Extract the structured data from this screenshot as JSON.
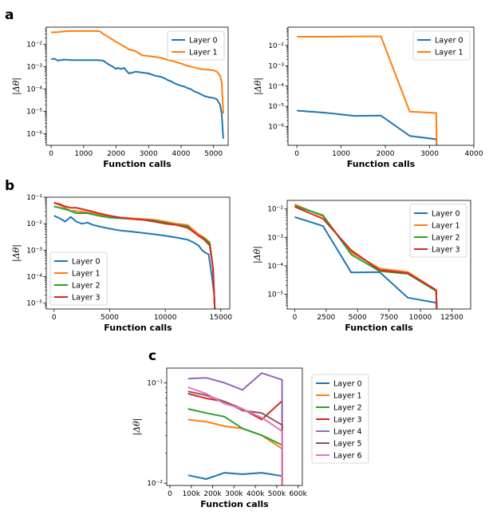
{
  "panel_labels": [
    "a",
    "b",
    "c"
  ],
  "chart_data": [
    {
      "id": "a-left",
      "type": "line",
      "yscale": "log",
      "xlabel": "Function calls",
      "ylabel": "|Δθ|",
      "xlim": [
        -150,
        5450
      ],
      "ylim": [
        3e-07,
        0.06
      ],
      "xticks": [
        0,
        1000,
        2000,
        3000,
        4000,
        5000
      ],
      "xtick_labels": [
        "0",
        "1000",
        "2000",
        "3000",
        "4000",
        "5000"
      ],
      "yticks": [
        1e-06,
        1e-05,
        0.0001,
        0.001,
        0.01
      ],
      "ytick_labels": [
        "10⁻⁶",
        "10⁻⁵",
        "10⁻⁴",
        "10⁻³",
        "10⁻²"
      ],
      "legend": "top-right",
      "series": [
        {
          "name": "Layer 0",
          "color": "#1f77b4",
          "x": [
            0,
            100,
            200,
            300,
            400,
            600,
            800,
            1000,
            1200,
            1400,
            1600,
            1700,
            1800,
            1900,
            2000,
            2050,
            2150,
            2250,
            2300,
            2400,
            2600,
            2800,
            3000,
            3200,
            3400,
            3500,
            3600,
            3700,
            3800,
            3900,
            4000,
            4100,
            4200,
            4300,
            4400,
            4500,
            4600,
            4700,
            4800,
            4900,
            5000,
            5100,
            5200,
            5250,
            5300
          ],
          "y": [
            0.0022,
            0.0023,
            0.0019,
            0.002,
            0.0021,
            0.002,
            0.002,
            0.002,
            0.002,
            0.002,
            0.0019,
            0.0015,
            0.0012,
            0.001,
            0.0008,
            0.0009,
            0.0008,
            0.0009,
            0.0007,
            0.0005,
            0.0006,
            0.00055,
            0.0005,
            0.0004,
            0.00035,
            0.0003,
            0.00025,
            0.00022,
            0.00018,
            0.00016,
            0.00014,
            0.00013,
            0.00011,
            0.0001,
            8e-05,
            7e-05,
            6e-05,
            5e-05,
            4.5e-05,
            4.2e-05,
            4e-05,
            3.5e-05,
            2e-05,
            8e-06,
            6e-07
          ]
        },
        {
          "name": "Layer 1",
          "color": "#ff7f0e",
          "x": [
            0,
            200,
            400,
            600,
            800,
            1000,
            1200,
            1400,
            1500,
            1600,
            1800,
            2000,
            2200,
            2400,
            2600,
            2800,
            3000,
            3200,
            3400,
            3600,
            3800,
            4000,
            4200,
            4400,
            4600,
            4800,
            5000,
            5100,
            5200,
            5250,
            5300
          ],
          "y": [
            0.035,
            0.036,
            0.039,
            0.04,
            0.04,
            0.04,
            0.04,
            0.04,
            0.039,
            0.03,
            0.02,
            0.013,
            0.009,
            0.006,
            0.005,
            0.0033,
            0.003,
            0.0028,
            0.0025,
            0.002,
            0.0017,
            0.0014,
            0.0011,
            0.00095,
            0.0008,
            0.00075,
            0.0007,
            0.0006,
            0.0004,
            0.0002,
            8e-06
          ]
        }
      ]
    },
    {
      "id": "a-right",
      "type": "line",
      "yscale": "log",
      "xlabel": "Function calls",
      "ylabel": "|Δθ|",
      "xlim": [
        -200,
        4000
      ],
      "ylim": [
        1.2e-07,
        0.08
      ],
      "xticks": [
        0,
        1000,
        2000,
        3000,
        4000
      ],
      "xtick_labels": [
        "0",
        "1000",
        "2000",
        "3000",
        "4000"
      ],
      "yticks": [
        1e-06,
        1e-05,
        0.0001,
        0.001,
        0.01
      ],
      "ytick_labels": [
        "10⁻⁶",
        "10⁻⁵",
        "10⁻⁴",
        "10⁻³",
        "10⁻²"
      ],
      "legend": "top-right",
      "series": [
        {
          "name": "Layer 0",
          "color": "#1f77b4",
          "x": [
            0,
            650,
            1300,
            1900,
            2550,
            3150,
            3160
          ],
          "y": [
            6.2e-06,
            4.8e-06,
            3.4e-06,
            3.5e-06,
            3.5e-07,
            2.4e-07,
            1.2e-07
          ]
        },
        {
          "name": "Layer 1",
          "color": "#ff7f0e",
          "x": [
            0,
            650,
            1300,
            1900,
            2550,
            3150,
            3160
          ],
          "y": [
            0.027,
            0.027,
            0.028,
            0.028,
            5.5e-06,
            4.7e-06,
            1.2e-07
          ]
        }
      ]
    },
    {
      "id": "b-left",
      "type": "line",
      "yscale": "log",
      "xlabel": "Function calls",
      "ylabel": "|Δθ|",
      "xlim": [
        -700,
        15800
      ],
      "ylim": [
        6e-06,
        0.1
      ],
      "xticks": [
        0,
        5000,
        10000,
        15000
      ],
      "xtick_labels": [
        "0",
        "5000",
        "10000",
        "15000"
      ],
      "yticks": [
        1e-05,
        0.0001,
        0.001,
        0.01,
        0.1
      ],
      "ytick_labels": [
        "10⁻⁵",
        "10⁻⁴",
        "10⁻³",
        "10⁻²",
        "10⁻¹"
      ],
      "legend": "bottom-left",
      "series": [
        {
          "name": "Layer 0",
          "color": "#1f77b4",
          "x": [
            0,
            500,
            1000,
            1500,
            2000,
            2500,
            3000,
            3500,
            4000,
            5000,
            6000,
            7000,
            8000,
            9000,
            10000,
            11000,
            12000,
            12500,
            13000,
            13300,
            13600,
            13900,
            14200,
            14400,
            14450
          ],
          "y": [
            0.02,
            0.016,
            0.012,
            0.018,
            0.012,
            0.01,
            0.011,
            0.009,
            0.008,
            0.0065,
            0.0055,
            0.005,
            0.0045,
            0.004,
            0.0035,
            0.003,
            0.0025,
            0.002,
            0.0015,
            0.001,
            0.0008,
            0.0007,
            0.0001,
            2e-05,
            6e-06
          ]
        },
        {
          "name": "Layer 1",
          "color": "#ff7f0e",
          "x": [
            0,
            500,
            1000,
            1500,
            2000,
            3000,
            4000,
            5000,
            6000,
            7000,
            8000,
            9000,
            10000,
            11000,
            12000,
            12500,
            13000,
            13500,
            14000,
            14300,
            14450
          ],
          "y": [
            0.065,
            0.05,
            0.04,
            0.03,
            0.03,
            0.027,
            0.022,
            0.018,
            0.017,
            0.016,
            0.015,
            0.014,
            0.012,
            0.01,
            0.009,
            0.006,
            0.004,
            0.003,
            0.002,
            0.0002,
            6e-06
          ]
        },
        {
          "name": "Layer 2",
          "color": "#2ca02c",
          "x": [
            0,
            500,
            1000,
            1500,
            2000,
            3000,
            4000,
            5000,
            6000,
            7000,
            8000,
            9000,
            10000,
            11000,
            12000,
            12500,
            13000,
            13500,
            14000,
            14300,
            14450
          ],
          "y": [
            0.045,
            0.04,
            0.035,
            0.03,
            0.025,
            0.025,
            0.02,
            0.017,
            0.016,
            0.015,
            0.014,
            0.013,
            0.011,
            0.009,
            0.008,
            0.005,
            0.0035,
            0.0028,
            0.0018,
            0.0002,
            6e-06
          ]
        },
        {
          "name": "Layer 3",
          "color": "#d62728",
          "x": [
            0,
            500,
            1000,
            1500,
            2000,
            3000,
            4000,
            5000,
            6000,
            7000,
            8000,
            9000,
            10000,
            11000,
            12000,
            12500,
            13000,
            13500,
            14000,
            14300,
            14450
          ],
          "y": [
            0.06,
            0.055,
            0.045,
            0.04,
            0.04,
            0.032,
            0.025,
            0.02,
            0.017,
            0.015,
            0.014,
            0.012,
            0.01,
            0.009,
            0.007,
            0.005,
            0.0035,
            0.0025,
            0.0015,
            0.0002,
            6e-06
          ]
        }
      ]
    },
    {
      "id": "b-right",
      "type": "line",
      "yscale": "log",
      "xlabel": "Function calls",
      "ylabel": "|Δθ|",
      "xlim": [
        -600,
        14000
      ],
      "ylim": [
        3e-06,
        0.02
      ],
      "xticks": [
        0,
        2500,
        5000,
        7500,
        10000,
        12500
      ],
      "xtick_labels": [
        "0",
        "2500",
        "5000",
        "7500",
        "10000",
        "12500"
      ],
      "yticks": [
        1e-05,
        0.0001,
        0.001,
        0.01
      ],
      "ytick_labels": [
        "10⁻⁵",
        "10⁻⁴",
        "10⁻³",
        "10⁻²"
      ],
      "legend": "top-right",
      "series": [
        {
          "name": "Layer 0",
          "color": "#1f77b4",
          "x": [
            0,
            2250,
            4500,
            6750,
            9000,
            11250,
            11300
          ],
          "y": [
            0.0052,
            0.0025,
            5.8e-05,
            6e-05,
            7.5e-06,
            5e-06,
            3e-06
          ]
        },
        {
          "name": "Layer 1",
          "color": "#ff7f0e",
          "x": [
            0,
            2250,
            4500,
            6750,
            9000,
            11250,
            11300
          ],
          "y": [
            0.0145,
            0.0055,
            0.0003,
            8e-05,
            6e-05,
            1.4e-05,
            3e-06
          ]
        },
        {
          "name": "Layer 2",
          "color": "#2ca02c",
          "x": [
            0,
            2250,
            4500,
            6750,
            9000,
            11250,
            11300
          ],
          "y": [
            0.013,
            0.006,
            0.00025,
            6.5e-05,
            5.2e-05,
            1.3e-05,
            3e-06
          ]
        },
        {
          "name": "Layer 3",
          "color": "#d62728",
          "x": [
            0,
            2250,
            4500,
            6750,
            9000,
            11250,
            11300
          ],
          "y": [
            0.012,
            0.0045,
            0.00035,
            7e-05,
            5.5e-05,
            1.4e-05,
            3e-06
          ]
        }
      ]
    },
    {
      "id": "c",
      "type": "line",
      "yscale": "log",
      "xlabel": "Function calls",
      "ylabel": "|Δθ|",
      "xlim": [
        -15000,
        620000
      ],
      "ylim": [
        0.0095,
        0.14
      ],
      "xticks": [
        0,
        100000,
        200000,
        300000,
        400000,
        500000,
        600000
      ],
      "xtick_labels": [
        "0",
        "100k",
        "200k",
        "300k",
        "400k",
        "500k",
        "600k"
      ],
      "yticks": [
        0.01,
        0.1
      ],
      "ytick_labels": [
        "10⁻²",
        "10⁻¹"
      ],
      "legend": "outside-right",
      "series": [
        {
          "name": "Layer 0",
          "color": "#1f77b4",
          "x": [
            85000,
            170000,
            255000,
            340000,
            430000,
            525000,
            525500
          ],
          "y": [
            0.012,
            0.011,
            0.0127,
            0.0123,
            0.0127,
            0.0118,
            0.0095
          ]
        },
        {
          "name": "Layer 1",
          "color": "#ff7f0e",
          "x": [
            85000,
            170000,
            255000,
            340000,
            430000,
            525000,
            525500
          ],
          "y": [
            0.043,
            0.041,
            0.037,
            0.035,
            0.03,
            0.022,
            0.0095
          ]
        },
        {
          "name": "Layer 2",
          "color": "#2ca02c",
          "x": [
            85000,
            170000,
            255000,
            340000,
            430000,
            525000,
            525500
          ],
          "y": [
            0.055,
            0.05,
            0.046,
            0.035,
            0.03,
            0.024,
            0.0095
          ]
        },
        {
          "name": "Layer 3",
          "color": "#d62728",
          "x": [
            85000,
            170000,
            255000,
            340000,
            430000,
            525000,
            525500
          ],
          "y": [
            0.078,
            0.07,
            0.065,
            0.055,
            0.043,
            0.066,
            0.0095
          ]
        },
        {
          "name": "Layer 4",
          "color": "#9467bd",
          "x": [
            85000,
            170000,
            255000,
            340000,
            430000,
            525000,
            525500
          ],
          "y": [
            0.11,
            0.112,
            0.1,
            0.085,
            0.125,
            0.107,
            0.0095
          ]
        },
        {
          "name": "Layer 5",
          "color": "#8c564b",
          "x": [
            85000,
            170000,
            255000,
            340000,
            430000,
            525000,
            525500
          ],
          "y": [
            0.082,
            0.075,
            0.065,
            0.053,
            0.05,
            0.038,
            0.0095
          ]
        },
        {
          "name": "Layer 6",
          "color": "#e377c2",
          "x": [
            85000,
            170000,
            255000,
            340000,
            430000,
            525000,
            525500
          ],
          "y": [
            0.09,
            0.078,
            0.062,
            0.055,
            0.045,
            0.033,
            0.0095
          ]
        }
      ]
    }
  ]
}
